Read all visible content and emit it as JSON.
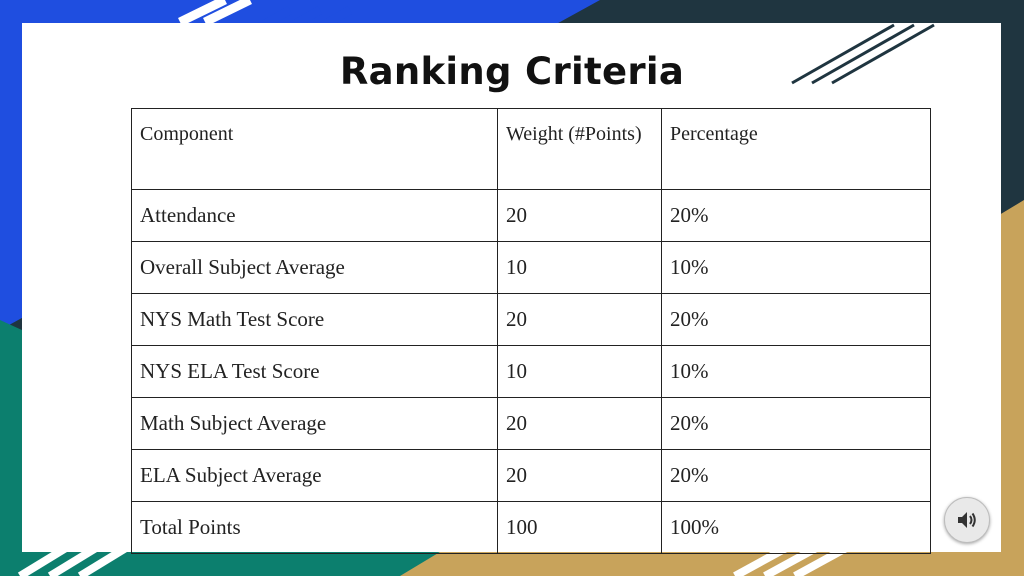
{
  "slide": {
    "title": "Ranking Criteria"
  },
  "table": {
    "headers": [
      "Component",
      "Weight (#Points)",
      "Percentage"
    ],
    "rows": [
      [
        "Attendance",
        "20",
        "20%"
      ],
      [
        "Overall Subject Average",
        "10",
        "10%"
      ],
      [
        "NYS Math Test Score",
        "20",
        "20%"
      ],
      [
        "NYS ELA Test Score",
        "10",
        "10%"
      ],
      [
        "Math Subject Average",
        "20",
        "20%"
      ],
      [
        "ELA Subject Average",
        "20",
        "20%"
      ],
      [
        "Total Points",
        "100",
        "100%"
      ]
    ]
  },
  "audio": {
    "icon": "speaker-icon"
  },
  "colors": {
    "blue": "#1f4ee0",
    "teal": "#0c7f6e",
    "gold": "#c8a35b",
    "dark": "#1f3540"
  }
}
